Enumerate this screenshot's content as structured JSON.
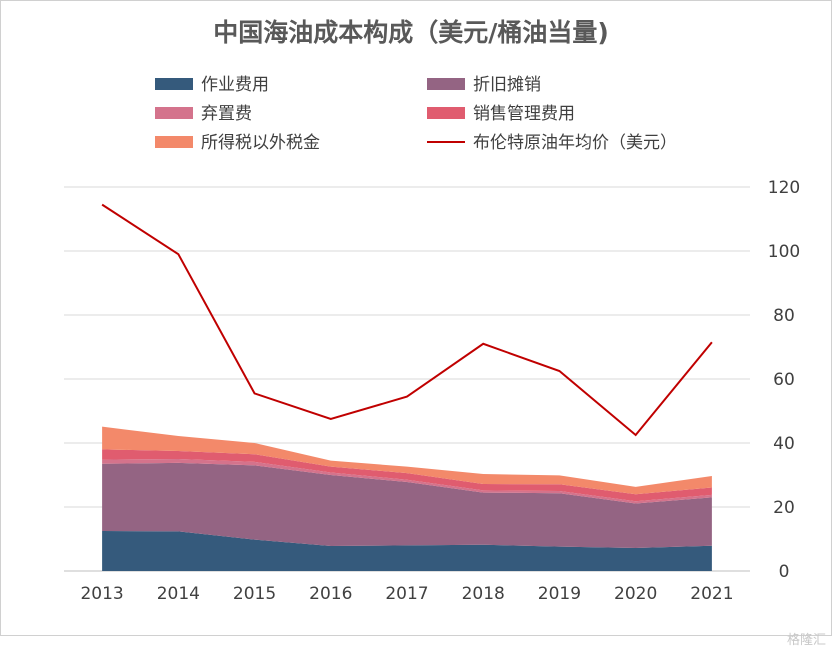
{
  "watermark": "格隆汇",
  "chart_data": {
    "type": "area",
    "title": "中国海油成本构成（美元/桶油当量)",
    "legend_position": "top",
    "grid": true,
    "categories": [
      "2013",
      "2014",
      "2015",
      "2016",
      "2017",
      "2018",
      "2019",
      "2020",
      "2021"
    ],
    "ylim": [
      0,
      120
    ],
    "yticks": [
      0,
      20,
      40,
      60,
      80,
      100,
      120
    ],
    "y_axis_side": "right",
    "stacked": true,
    "series": [
      {
        "name": "作业费用",
        "kind": "area",
        "color": "#355a7c",
        "values": [
          12.5,
          12.4,
          9.8,
          7.8,
          8.0,
          8.2,
          7.6,
          7.2,
          7.9
        ]
      },
      {
        "name": "折旧摊销",
        "kind": "area",
        "color": "#946483",
        "values": [
          21.0,
          21.4,
          23.2,
          22.2,
          19.8,
          16.3,
          16.7,
          13.9,
          15.1
        ]
      },
      {
        "name": "弃置费",
        "kind": "area",
        "color": "#d4738c",
        "values": [
          1.3,
          1.2,
          1.1,
          0.8,
          0.7,
          0.7,
          0.7,
          0.7,
          0.8
        ]
      },
      {
        "name": "销售管理费用",
        "kind": "area",
        "color": "#e05c6f",
        "values": [
          3.2,
          2.5,
          2.4,
          1.8,
          2.1,
          2.0,
          2.1,
          2.2,
          2.3
        ]
      },
      {
        "name": "所得税以外税金",
        "kind": "area",
        "color": "#f3896a",
        "values": [
          7.1,
          4.7,
          3.5,
          1.9,
          2.0,
          3.1,
          2.8,
          2.3,
          3.6
        ]
      },
      {
        "name": "布伦特原油年均价（美元）",
        "kind": "line",
        "color": "#c00000",
        "values": [
          114.5,
          99.0,
          55.5,
          47.5,
          54.5,
          71.0,
          62.5,
          42.5,
          71.5
        ]
      }
    ]
  }
}
